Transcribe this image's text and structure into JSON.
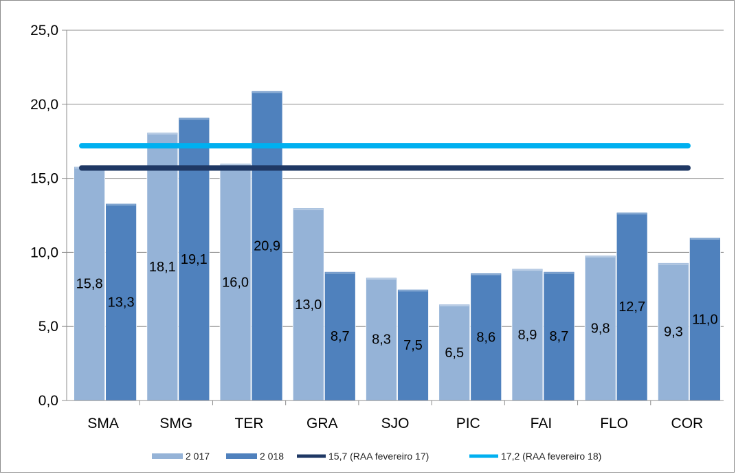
{
  "chart_data": {
    "type": "bar",
    "title": "",
    "xlabel": "",
    "ylabel": "",
    "ylim": [
      0,
      25
    ],
    "yticks": [
      "0,0",
      "5,0",
      "10,0",
      "15,0",
      "20,0",
      "25,0"
    ],
    "grid": true,
    "legend_position": "bottom",
    "categories": [
      "SMA",
      "SMG",
      "TER",
      "GRA",
      "SJO",
      "PIC",
      "FAI",
      "FLO",
      "COR"
    ],
    "series": [
      {
        "name": "2 017",
        "values": [
          15.8,
          18.1,
          16.0,
          13.0,
          8.3,
          6.5,
          8.9,
          9.8,
          9.3
        ],
        "labels": [
          "15,8",
          "18,1",
          "16,0",
          "13,0",
          "8,3",
          "6,5",
          "8,9",
          "9,8",
          "9,3"
        ],
        "color": "#95b3d7"
      },
      {
        "name": "2 018",
        "values": [
          13.3,
          19.1,
          20.9,
          8.7,
          7.5,
          8.6,
          8.7,
          12.7,
          11.0
        ],
        "labels": [
          "13,3",
          "19,1",
          "20,9",
          "8,7",
          "7,5",
          "8,6",
          "8,7",
          "12,7",
          "11,0"
        ],
        "color": "#4f81bd"
      }
    ],
    "reference_lines": [
      {
        "name": "15,7 (RAA fevereiro 17)",
        "value": 15.7,
        "color": "#1f3864"
      },
      {
        "name": "17,2 (RAA fevereiro 18)",
        "value": 17.2,
        "color": "#00b0f0"
      }
    ]
  }
}
